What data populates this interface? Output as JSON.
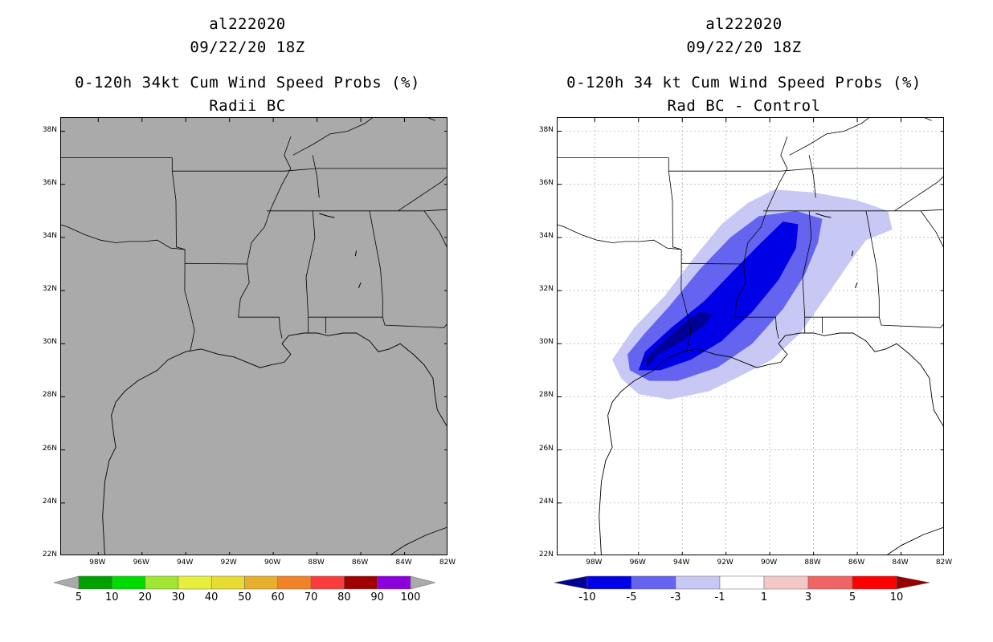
{
  "left_panel": {
    "title_line1": "al222020",
    "title_line2": "09/22/20 18Z",
    "title_line3": "0-120h 34kt Cum Wind Speed Probs (%)",
    "title_line4": "Radii BC",
    "fill_color": "#aaaaaa",
    "colorbar": {
      "labels": [
        "5",
        "10",
        "20",
        "30",
        "40",
        "50",
        "60",
        "70",
        "80",
        "90",
        "100"
      ],
      "colors": [
        "#00a000",
        "#00dc00",
        "#a0e632",
        "#e6f03c",
        "#e6dc32",
        "#e6af2d",
        "#f08228",
        "#fa3c3c",
        "#a00000",
        "#8c00dc"
      ],
      "under_color": "#aaaaaa",
      "over_color": "#aaaaaa"
    }
  },
  "right_panel": {
    "title_line1": "al222020",
    "title_line2": "09/22/20 18Z",
    "title_line3": "0-120h 34 kt Cum Wind Speed Probs (%)",
    "title_line4": "Rad BC - Control",
    "colorbar": {
      "labels": [
        "-10",
        "-5",
        "-3",
        "-1",
        "1",
        "3",
        "5",
        "10"
      ],
      "colors": [
        "#0000e6",
        "#6464f0",
        "#c8c8f5",
        "#ffffff",
        "#f5c8c8",
        "#f06464",
        "#ff0000"
      ],
      "under_color": "#000096",
      "over_color": "#960000"
    },
    "contour_colors": [
      "#c8c8f5",
      "#6464f0",
      "#0000e6",
      "#000096"
    ]
  },
  "lat_labels": [
    "38N",
    "36N",
    "34N",
    "32N",
    "30N",
    "28N",
    "26N",
    "24N",
    "22N"
  ],
  "lon_labels": [
    "98W",
    "96W",
    "94W",
    "92W",
    "90W",
    "88W",
    "86W",
    "84W",
    "82W"
  ],
  "map": {
    "lat_range": [
      22,
      38.5
    ],
    "lon_range": [
      -99.7,
      -82
    ]
  }
}
